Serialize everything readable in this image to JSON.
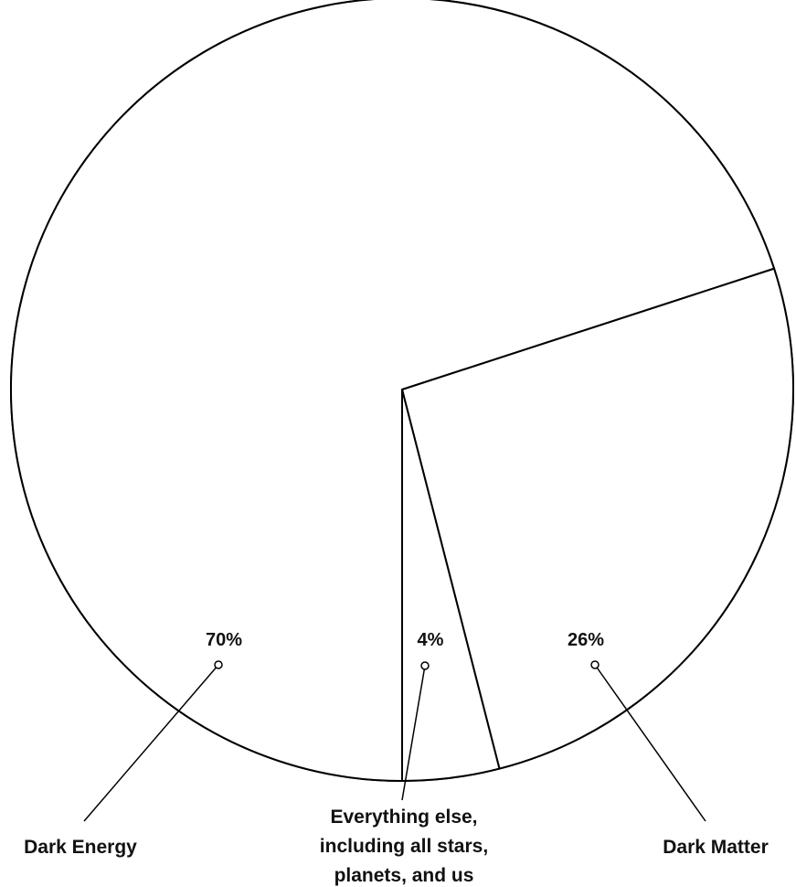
{
  "chart_data": {
    "type": "pie",
    "slices": [
      {
        "label": "Dark Energy",
        "value": 70,
        "value_label": "70%"
      },
      {
        "label": "Dark Matter",
        "value": 26,
        "value_label": "26%"
      },
      {
        "label": "Everything else, including all stars, planets, and us",
        "value": 4,
        "value_label": "4%"
      }
    ],
    "colors": {
      "fill": "#ffffff",
      "stroke": "#000000"
    }
  }
}
